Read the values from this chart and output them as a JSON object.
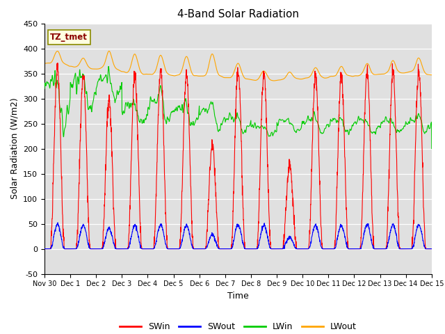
{
  "title": "4-Band Solar Radiation",
  "xlabel": "Time",
  "ylabel": "Solar Radiation (W/m2)",
  "ylim": [
    -50,
    450
  ],
  "bg_color": "#e0e0e0",
  "series_colors": {
    "SWin": "#ff0000",
    "SWout": "#0000ff",
    "LWin": "#00cc00",
    "LWout": "#ffa500"
  },
  "xtick_labels": [
    "Nov 30",
    "Dec 1",
    "Dec 2",
    "Dec 3",
    "Dec 4",
    "Dec 5",
    "Dec 6",
    "Dec 7",
    "Dec 8",
    "Dec 9",
    "Dec 10",
    "Dec 11",
    "Dec 12",
    "Dec 13",
    "Dec 14",
    "Dec 15"
  ],
  "ytick_values": [
    -50,
    0,
    50,
    100,
    150,
    200,
    250,
    300,
    350,
    400,
    450
  ],
  "days": 15,
  "pts_per_day": 144
}
